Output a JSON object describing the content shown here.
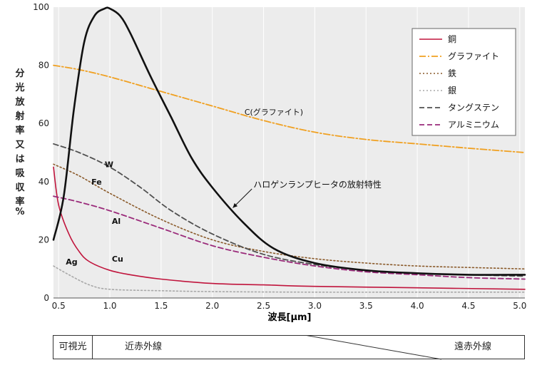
{
  "chart_data": {
    "type": "line",
    "xlabel": "波長[μm]",
    "ylabel": "分光放射率又は吸収率",
    "ylabel_unit": "%",
    "xlim": [
      0.45,
      5.05
    ],
    "ylim": [
      0,
      100
    ],
    "xticks": [
      0.5,
      1.0,
      1.5,
      2.0,
      2.5,
      3.0,
      3.5,
      4.0,
      4.5,
      5.0
    ],
    "xtick_labels": [
      "0.5",
      "1.0",
      "1.5",
      "2.0",
      "2.5",
      "3.0",
      "3.5",
      "4.0",
      "4.5",
      "5.0"
    ],
    "yticks": [
      0,
      20,
      40,
      60,
      80,
      100
    ],
    "ytick_labels": [
      "0",
      "20",
      "40",
      "60",
      "80",
      "100"
    ],
    "grid": "vertical",
    "legend_position": "top-right",
    "series": [
      {
        "name": "銅",
        "color": "#c0143c",
        "dash": "solid",
        "x": [
          0.45,
          0.5,
          0.6,
          0.7,
          0.8,
          1.0,
          1.2,
          1.5,
          2.0,
          2.5,
          3.0,
          4.0,
          5.05
        ],
        "y": [
          45,
          32,
          22,
          16,
          12.5,
          9.5,
          8,
          6.5,
          5,
          4.5,
          4,
          3.5,
          3
        ]
      },
      {
        "name": "グラファイト",
        "color": "#f0a020",
        "dash": "dashdot",
        "x": [
          0.45,
          0.7,
          1.0,
          1.5,
          2.0,
          2.5,
          3.0,
          3.5,
          4.0,
          4.5,
          5.05
        ],
        "y": [
          80,
          78.5,
          76,
          71,
          66,
          61,
          57,
          54.5,
          53,
          51.5,
          50
        ]
      },
      {
        "name": "鉄",
        "color": "#8a5a2a",
        "dash": "dotted",
        "x": [
          0.45,
          0.7,
          1.0,
          1.5,
          2.0,
          2.5,
          3.0,
          3.5,
          4.0,
          4.5,
          5.05
        ],
        "y": [
          46,
          42,
          36,
          27,
          20,
          16,
          13.5,
          12,
          11,
          10.5,
          10
        ]
      },
      {
        "name": "銀",
        "color": "#a8a8a8",
        "dash": "dotted",
        "x": [
          0.45,
          0.6,
          0.8,
          1.0,
          1.5,
          2.0,
          3.0,
          4.0,
          5.05
        ],
        "y": [
          11,
          8,
          4.5,
          3,
          2.5,
          2.2,
          2,
          2,
          2
        ]
      },
      {
        "name": "タングステン",
        "color": "#505050",
        "dash": "dashed",
        "x": [
          0.45,
          0.7,
          1.0,
          1.3,
          1.6,
          2.0,
          2.5,
          3.0,
          3.5,
          4.0,
          4.5,
          5.05
        ],
        "y": [
          53,
          50,
          45,
          38,
          30,
          22,
          15,
          11.5,
          9.5,
          8.5,
          8,
          7.5
        ]
      },
      {
        "name": "アルミニウム",
        "color": "#9a2a7a",
        "dash": "dashed",
        "x": [
          0.45,
          0.7,
          1.0,
          1.5,
          2.0,
          2.5,
          3.0,
          3.5,
          4.0,
          4.5,
          5.05
        ],
        "y": [
          35,
          33,
          30,
          24,
          18,
          14,
          11,
          9,
          8,
          7,
          6.5
        ]
      },
      {
        "name": "ハロゲンランプヒータの放射特性",
        "color": "#111111",
        "dash": "solid",
        "x": [
          0.45,
          0.55,
          0.65,
          0.75,
          0.85,
          0.95,
          1.0,
          1.1,
          1.2,
          1.4,
          1.6,
          1.8,
          2.0,
          2.3,
          2.6,
          3.0,
          3.5,
          4.0,
          4.5,
          5.05
        ],
        "y": [
          20,
          35,
          65,
          88,
          97,
          99.5,
          99.5,
          97,
          91,
          76,
          62,
          48,
          38,
          26,
          17,
          12,
          9.5,
          8.5,
          8,
          8
        ]
      }
    ],
    "legend": [
      "銅",
      "グラファイト",
      "鉄",
      "銀",
      "タングステン",
      "アルミニウム"
    ],
    "annotations": [
      {
        "text": "C(グラファイト)",
        "x": 2.6,
        "y": 63
      },
      {
        "text": "W",
        "x": 0.95,
        "y": 45
      },
      {
        "text": "Fe",
        "x": 0.82,
        "y": 39
      },
      {
        "text": "Al",
        "x": 1.02,
        "y": 25.5
      },
      {
        "text": "Cu",
        "x": 1.02,
        "y": 12.5
      },
      {
        "text": "Ag",
        "x": 0.57,
        "y": 11.5
      },
      {
        "text": "ハロゲンランプヒータの放射特性",
        "x": 2.4,
        "y": 38,
        "arrow_to_x": 2.2,
        "arrow_to_y": 31
      }
    ]
  },
  "spectrum_band": {
    "visible": "可視光",
    "near_ir": "近赤外線",
    "far_ir": "遠赤外線"
  }
}
